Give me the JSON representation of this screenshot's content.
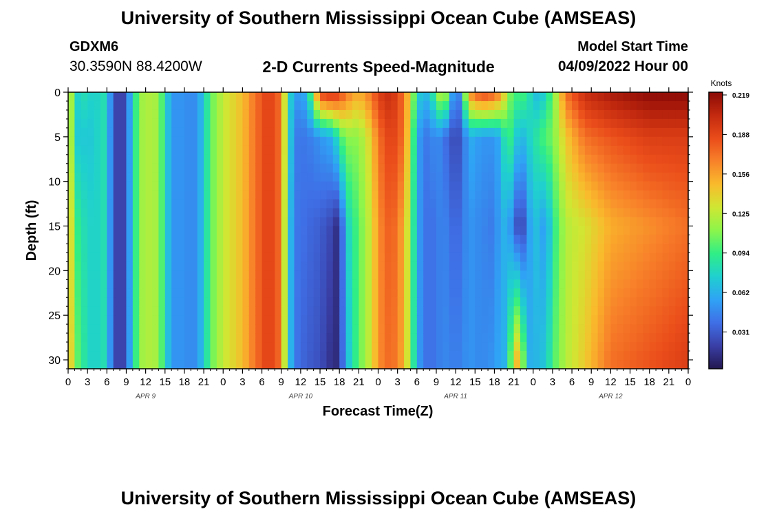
{
  "header": {
    "title": "University of Southern Mississippi Ocean Cube (AMSEAS)",
    "station": "GDXM6",
    "coords": "30.3590N  88.4200W",
    "subtitle": "2-D Currents Speed-Magnitude",
    "start_label": "Model Start Time",
    "start_value": "04/09/2022 Hour 00"
  },
  "footer": {
    "title": "University of Southern Mississippi Ocean Cube (AMSEAS)"
  },
  "chart_data": {
    "type": "heatmap",
    "title": "2-D Currents Speed-Magnitude",
    "xlabel": "Forecast Time(Z)",
    "ylabel": "Depth (ft)",
    "x_unit": "hours from model start",
    "x_range": [
      0,
      96
    ],
    "x_tick_labels": [
      "0",
      "3",
      "6",
      "9",
      "12",
      "15",
      "18",
      "21",
      "0",
      "3",
      "6",
      "9",
      "12",
      "15",
      "18",
      "21",
      "0",
      "3",
      "6",
      "9",
      "12",
      "15",
      "18",
      "21",
      "0",
      "3",
      "6",
      "9",
      "12",
      "15",
      "18",
      "21",
      "0"
    ],
    "date_labels": [
      {
        "hour": 12,
        "label": "APR 9"
      },
      {
        "hour": 36,
        "label": "APR 10"
      },
      {
        "hour": 60,
        "label": "APR 11"
      },
      {
        "hour": 84,
        "label": "APR 12"
      }
    ],
    "y_range": [
      0,
      31
    ],
    "y_reversed": true,
    "y_ticks": [
      0,
      5,
      10,
      15,
      20,
      25,
      30
    ],
    "colorbar": {
      "label": "Knots",
      "ticks": [
        "0.219",
        "0.188",
        "0.156",
        "0.125",
        "0.094",
        "0.062",
        "0.031"
      ],
      "min": 0.0,
      "max": 0.219,
      "colors": [
        "#23174f",
        "#3a3fa6",
        "#3f6fe6",
        "#2fa3f5",
        "#1fd0cf",
        "#30ee86",
        "#8cf54b",
        "#cfe733",
        "#f9bb2c",
        "#f8822a",
        "#ea4c1a",
        "#c32a0f",
        "#8b0a06"
      ]
    },
    "profiles": [
      {
        "hour": 0,
        "values": [
          0.15,
          0.15,
          0.15,
          0.15
        ]
      },
      {
        "hour": 1,
        "values": [
          0.08,
          0.08,
          0.11,
          0.12
        ]
      },
      {
        "hour": 2,
        "values": [
          0.07,
          0.06,
          0.07,
          0.08
        ]
      },
      {
        "hour": 3,
        "values": [
          0.09,
          0.08,
          0.09,
          0.09
        ]
      },
      {
        "hour": 4,
        "values": [
          0.06,
          0.06,
          0.06,
          0.06
        ]
      },
      {
        "hour": 5,
        "values": [
          0.09,
          0.09,
          0.09,
          0.09
        ]
      },
      {
        "hour": 6,
        "values": [
          0.07,
          0.07,
          0.07,
          0.07
        ]
      },
      {
        "hour": 7,
        "values": [
          0.03,
          0.03,
          0.03,
          0.03
        ]
      },
      {
        "hour": 8,
        "values": [
          0.01,
          0.01,
          0.01,
          0.01
        ]
      },
      {
        "hour": 9,
        "values": [
          0.03,
          0.03,
          0.03,
          0.03
        ]
      },
      {
        "hour": 10,
        "values": [
          0.075,
          0.075,
          0.075,
          0.075
        ]
      },
      {
        "hour": 11,
        "values": [
          0.11,
          0.11,
          0.11,
          0.11
        ]
      },
      {
        "hour": 12,
        "values": [
          0.12,
          0.12,
          0.12,
          0.12
        ]
      },
      {
        "hour": 14,
        "values": [
          0.115,
          0.115,
          0.115,
          0.115
        ]
      },
      {
        "hour": 15,
        "values": [
          0.08,
          0.08,
          0.08,
          0.08
        ]
      },
      {
        "hour": 16,
        "values": [
          0.05,
          0.05,
          0.05,
          0.05
        ]
      },
      {
        "hour": 18,
        "values": [
          0.05,
          0.05,
          0.05,
          0.05
        ]
      },
      {
        "hour": 19,
        "values": [
          0.045,
          0.045,
          0.045,
          0.045
        ]
      },
      {
        "hour": 20,
        "values": [
          0.05,
          0.05,
          0.05,
          0.05
        ]
      },
      {
        "hour": 21,
        "values": [
          0.07,
          0.07,
          0.07,
          0.07
        ]
      },
      {
        "hour": 22,
        "values": [
          0.1,
          0.1,
          0.1,
          0.1
        ]
      },
      {
        "hour": 24,
        "values": [
          0.125,
          0.125,
          0.125,
          0.125
        ]
      },
      {
        "hour": 27,
        "values": [
          0.145,
          0.145,
          0.145,
          0.145
        ]
      },
      {
        "hour": 29,
        "values": [
          0.17,
          0.17,
          0.17,
          0.17
        ]
      },
      {
        "hour": 31,
        "values": [
          0.19,
          0.19,
          0.19,
          0.19
        ]
      },
      {
        "hour": 33,
        "values": [
          0.17,
          0.17,
          0.17,
          0.17
        ]
      },
      {
        "hour": 34,
        "values": [
          0.09,
          0.09,
          0.08,
          0.08
        ]
      },
      {
        "hour": 35,
        "values": [
          0.05,
          0.04,
          0.04,
          0.04
        ]
      },
      {
        "hour": 37,
        "values": [
          0.06,
          0.04,
          0.035,
          0.03
        ]
      },
      {
        "hour": 39,
        "values": [
          0.19,
          0.05,
          0.03,
          0.025
        ]
      },
      {
        "hour": 41,
        "values": [
          0.2,
          0.06,
          0.02,
          0.01
        ]
      },
      {
        "hour": 42,
        "values": [
          0.19,
          0.09,
          0.005,
          0.01
        ]
      },
      {
        "hour": 43,
        "values": [
          0.17,
          0.11,
          0.07,
          0.06
        ]
      },
      {
        "hour": 45,
        "values": [
          0.15,
          0.11,
          0.1,
          0.1
        ]
      },
      {
        "hour": 47,
        "values": [
          0.17,
          0.14,
          0.13,
          0.13
        ]
      },
      {
        "hour": 48,
        "values": [
          0.19,
          0.17,
          0.16,
          0.16
        ]
      },
      {
        "hour": 50,
        "values": [
          0.2,
          0.19,
          0.18,
          0.175
        ]
      },
      {
        "hour": 52,
        "values": [
          0.17,
          0.17,
          0.15,
          0.15
        ]
      },
      {
        "hour": 53,
        "values": [
          0.13,
          0.12,
          0.11,
          0.11
        ]
      },
      {
        "hour": 54,
        "values": [
          0.08,
          0.06,
          0.06,
          0.06
        ]
      },
      {
        "hour": 55,
        "values": [
          0.06,
          0.04,
          0.04,
          0.04
        ]
      },
      {
        "hour": 56,
        "values": [
          0.07,
          0.04,
          0.035,
          0.035
        ]
      },
      {
        "hour": 57,
        "values": [
          0.1,
          0.05,
          0.04,
          0.04
        ]
      },
      {
        "hour": 58,
        "values": [
          0.14,
          0.04,
          0.045,
          0.045
        ]
      },
      {
        "hour": 59,
        "values": [
          0.09,
          0.03,
          0.04,
          0.045
        ]
      },
      {
        "hour": 60,
        "values": [
          0.02,
          0.02,
          0.03,
          0.04
        ]
      },
      {
        "hour": 61,
        "values": [
          0.07,
          0.03,
          0.04,
          0.045
        ]
      },
      {
        "hour": 62,
        "values": [
          0.16,
          0.06,
          0.05,
          0.05
        ]
      },
      {
        "hour": 64,
        "values": [
          0.19,
          0.05,
          0.045,
          0.045
        ]
      },
      {
        "hour": 66,
        "values": [
          0.18,
          0.05,
          0.04,
          0.05
        ]
      },
      {
        "hour": 67,
        "values": [
          0.16,
          0.06,
          0.06,
          0.06
        ]
      },
      {
        "hour": 68,
        "values": [
          0.12,
          0.1,
          0.06,
          0.06
        ]
      },
      {
        "hour": 69,
        "values": [
          0.09,
          0.08,
          0.04,
          0.14
        ]
      },
      {
        "hour": 70,
        "values": [
          0.1,
          0.06,
          0.01,
          0.15
        ]
      },
      {
        "hour": 71,
        "values": [
          0.09,
          0.07,
          0.04,
          0.06
        ]
      },
      {
        "hour": 72,
        "values": [
          0.07,
          0.08,
          0.07,
          0.06
        ]
      },
      {
        "hour": 73,
        "values": [
          0.06,
          0.09,
          0.06,
          0.065
        ]
      },
      {
        "hour": 74,
        "values": [
          0.08,
          0.1,
          0.05,
          0.07
        ]
      },
      {
        "hour": 75,
        "values": [
          0.1,
          0.105,
          0.085,
          0.095
        ]
      },
      {
        "hour": 77,
        "values": [
          0.17,
          0.14,
          0.12,
          0.12
        ]
      },
      {
        "hour": 80,
        "values": [
          0.2,
          0.17,
          0.13,
          0.14
        ]
      },
      {
        "hour": 84,
        "values": [
          0.21,
          0.18,
          0.15,
          0.17
        ]
      },
      {
        "hour": 90,
        "values": [
          0.219,
          0.19,
          0.16,
          0.18
        ]
      },
      {
        "hour": 96,
        "values": [
          0.219,
          0.19,
          0.17,
          0.19
        ]
      }
    ],
    "profile_depths": [
      0,
      5,
      15,
      30
    ]
  }
}
